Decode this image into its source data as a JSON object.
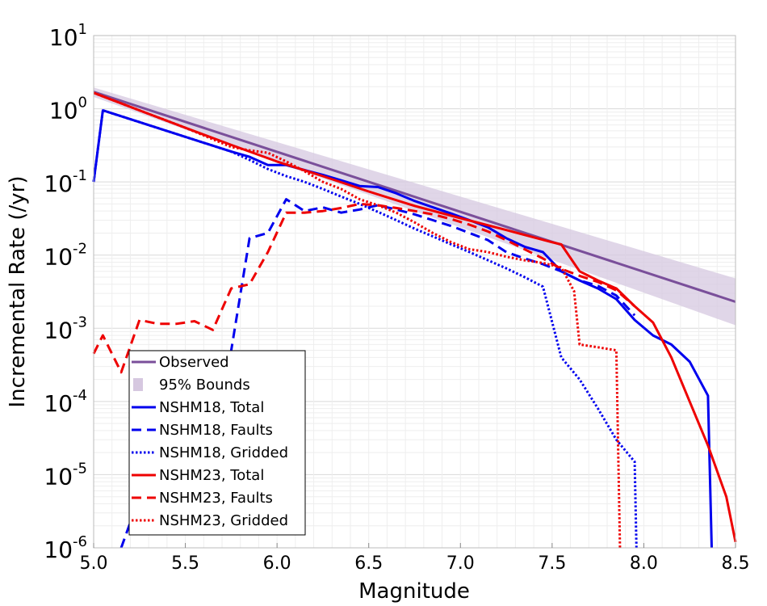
{
  "chart_data": {
    "type": "line",
    "title": "",
    "xlabel": "Magnitude",
    "ylabel": "Incremental Rate (/yr)",
    "xlim": [
      5.0,
      8.5
    ],
    "ylim": [
      1e-06,
      10
    ],
    "yscale": "log",
    "grid": true,
    "legend_position": "lower-left",
    "x_ticks": [
      "5.0",
      "5.5",
      "6.0",
      "6.5",
      "7.0",
      "7.5",
      "8.0",
      "8.5"
    ],
    "y_tick_exponents": [
      "-6",
      "-5",
      "-4",
      "-3",
      "-2",
      "-1",
      "0",
      "1"
    ],
    "legend": [
      {
        "label": "Observed",
        "color": "#7a4f9a",
        "style": "solid"
      },
      {
        "label": "95% Bounds",
        "color": "#d6c8e0",
        "style": "band"
      },
      {
        "label": "NSHM18, Total",
        "color": "#0000ee",
        "style": "solid"
      },
      {
        "label": "NSHM18, Faults",
        "color": "#0000ee",
        "style": "dashed"
      },
      {
        "label": "NSHM18, Gridded",
        "color": "#0000ee",
        "style": "dotted"
      },
      {
        "label": "NSHM23, Total",
        "color": "#ee0000",
        "style": "solid"
      },
      {
        "label": "NSHM23, Faults",
        "color": "#ee0000",
        "style": "dashed"
      },
      {
        "label": "NSHM23, Gridded",
        "color": "#ee0000",
        "style": "dotted"
      }
    ],
    "band": {
      "x": [
        5.0,
        8.5
      ],
      "lower": [
        1.45,
        0.0011
      ],
      "upper": [
        1.95,
        0.0048
      ]
    },
    "series": [
      {
        "name": "Observed",
        "color": "#7a4f9a",
        "style": "solid",
        "x": [
          5.0,
          8.5
        ],
        "y": [
          1.7,
          0.0023
        ]
      },
      {
        "name": "NSHM18, Total",
        "color": "#0000ee",
        "style": "solid",
        "x": [
          5.0,
          5.05,
          5.75,
          5.85,
          5.95,
          6.05,
          6.15,
          6.25,
          6.35,
          6.45,
          6.55,
          6.65,
          6.75,
          6.85,
          6.95,
          7.05,
          7.15,
          7.25,
          7.35,
          7.45,
          7.55,
          7.65,
          7.75,
          7.85,
          7.95,
          8.05,
          8.15,
          8.25,
          8.35,
          8.37
        ],
        "y": [
          0.1,
          0.95,
          0.26,
          0.22,
          0.17,
          0.17,
          0.145,
          0.125,
          0.105,
          0.088,
          0.085,
          0.07,
          0.055,
          0.045,
          0.037,
          0.03,
          0.024,
          0.017,
          0.013,
          0.011,
          0.006,
          0.0045,
          0.0035,
          0.0025,
          0.0013,
          0.0008,
          0.0006,
          0.00035,
          0.00012,
          1e-06
        ]
      },
      {
        "name": "NSHM18, Faults",
        "color": "#0000ee",
        "style": "dashed",
        "x": [
          5.15,
          5.25,
          5.45,
          5.65,
          5.75,
          5.85,
          5.95,
          6.05,
          6.15,
          6.25,
          6.35,
          6.45,
          6.55,
          6.65,
          6.75,
          6.85,
          6.95,
          7.05,
          7.15,
          7.25,
          7.35,
          7.45,
          7.55,
          7.65,
          7.75,
          7.85,
          7.95
        ],
        "y": [
          1e-06,
          5e-06,
          1e-05,
          0.0001,
          0.0005,
          0.017,
          0.02,
          0.058,
          0.04,
          0.045,
          0.038,
          0.042,
          0.048,
          0.042,
          0.036,
          0.03,
          0.025,
          0.02,
          0.016,
          0.011,
          0.009,
          0.0075,
          0.006,
          0.0045,
          0.0038,
          0.0028,
          0.0015
        ]
      },
      {
        "name": "NSHM18, Gridded",
        "color": "#0000ee",
        "style": "dotted",
        "x": [
          5.0,
          5.05,
          5.75,
          5.85,
          5.95,
          6.05,
          6.15,
          6.25,
          6.35,
          6.45,
          6.55,
          6.65,
          6.75,
          6.85,
          6.95,
          7.05,
          7.15,
          7.25,
          7.35,
          7.45,
          7.55,
          7.65,
          7.75,
          7.85,
          7.95,
          7.96
        ],
        "y": [
          0.1,
          0.95,
          0.26,
          0.2,
          0.15,
          0.12,
          0.1,
          0.08,
          0.063,
          0.05,
          0.039,
          0.03,
          0.023,
          0.018,
          0.014,
          0.011,
          0.0085,
          0.0066,
          0.005,
          0.0037,
          0.0004,
          0.0002,
          8e-05,
          3e-05,
          1.5e-05,
          1e-06
        ]
      },
      {
        "name": "NSHM23, Total",
        "color": "#ee0000",
        "style": "solid",
        "x": [
          5.0,
          5.25,
          5.5,
          5.75,
          6.0,
          6.25,
          6.5,
          6.75,
          7.0,
          7.25,
          7.5,
          7.55,
          7.65,
          7.75,
          7.85,
          7.95,
          8.05,
          8.15,
          8.25,
          8.35,
          8.45,
          8.5
        ],
        "y": [
          1.65,
          0.95,
          0.55,
          0.32,
          0.19,
          0.12,
          0.074,
          0.047,
          0.032,
          0.022,
          0.015,
          0.014,
          0.006,
          0.0045,
          0.0035,
          0.002,
          0.0012,
          0.0004,
          0.0001,
          2.5e-05,
          5e-06,
          1.2e-06
        ]
      },
      {
        "name": "NSHM23, Faults",
        "color": "#ee0000",
        "style": "dashed",
        "x": [
          5.0,
          5.05,
          5.15,
          5.25,
          5.35,
          5.45,
          5.55,
          5.65,
          5.75,
          5.85,
          5.95,
          6.05,
          6.15,
          6.25,
          6.35,
          6.45,
          6.55,
          6.65,
          6.75,
          6.85,
          6.95,
          7.05,
          7.15,
          7.25,
          7.35,
          7.45,
          7.55,
          7.65,
          7.75,
          7.85,
          7.95
        ],
        "y": [
          0.00045,
          0.0008,
          0.00025,
          0.0013,
          0.00115,
          0.00115,
          0.00125,
          0.00095,
          0.0035,
          0.004,
          0.011,
          0.038,
          0.038,
          0.04,
          0.044,
          0.05,
          0.048,
          0.044,
          0.04,
          0.036,
          0.031,
          0.026,
          0.021,
          0.016,
          0.012,
          0.009,
          0.0065,
          0.0052,
          0.0043,
          0.0033,
          0.002
        ]
      },
      {
        "name": "NSHM23, Gridded",
        "color": "#ee0000",
        "style": "dotted",
        "x": [
          5.0,
          5.25,
          5.5,
          5.75,
          5.85,
          5.95,
          6.05,
          6.15,
          6.25,
          6.35,
          6.45,
          6.55,
          6.65,
          6.75,
          6.85,
          6.95,
          7.05,
          7.15,
          7.25,
          7.35,
          7.45,
          7.55,
          7.62,
          7.65,
          7.75,
          7.85,
          7.87
        ],
        "y": [
          1.65,
          0.95,
          0.55,
          0.3,
          0.27,
          0.25,
          0.19,
          0.14,
          0.1,
          0.08,
          0.058,
          0.048,
          0.038,
          0.028,
          0.02,
          0.015,
          0.012,
          0.011,
          0.0095,
          0.0085,
          0.0078,
          0.0068,
          0.0032,
          0.0006,
          0.00055,
          0.0005,
          1e-06
        ]
      }
    ]
  }
}
